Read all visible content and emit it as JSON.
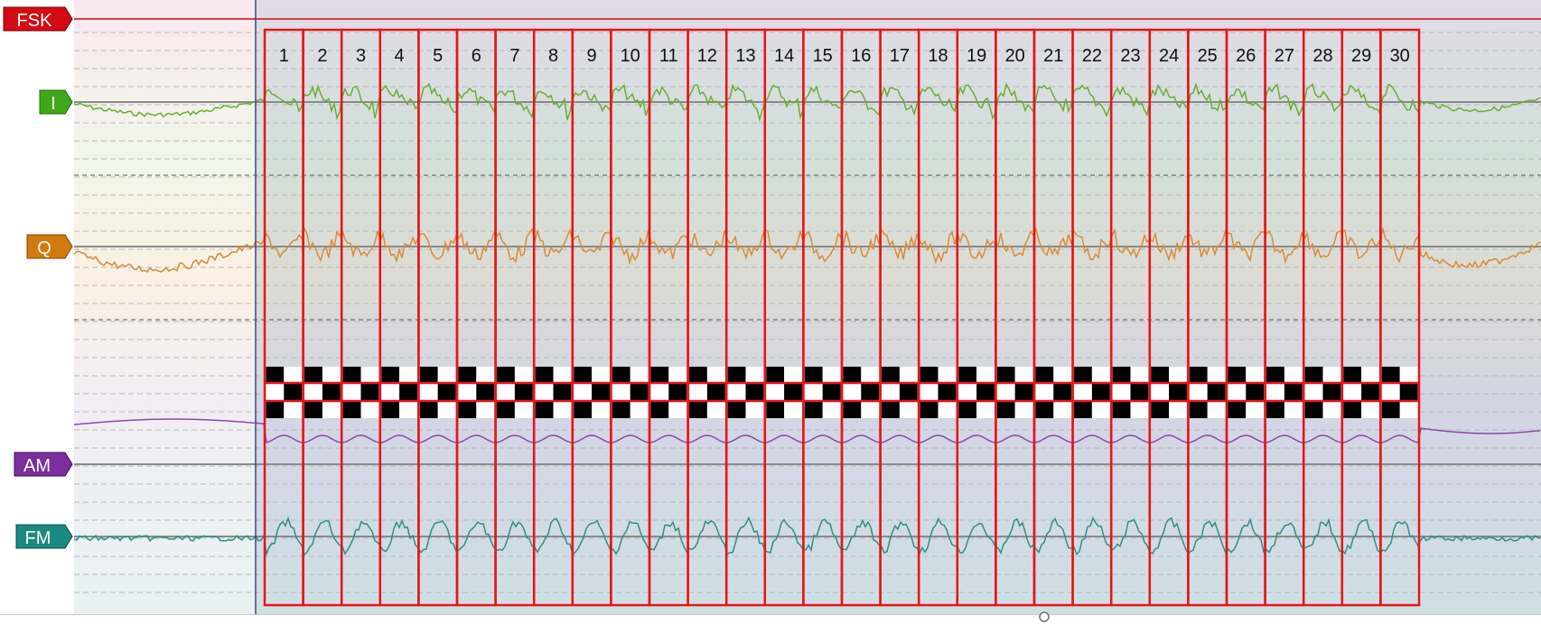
{
  "channels": [
    {
      "id": "fsk",
      "label": "FSK",
      "color": "#d20a14"
    },
    {
      "id": "i",
      "label": "I",
      "color": "#3ea81a"
    },
    {
      "id": "q",
      "label": "Q",
      "color": "#d17a12"
    },
    {
      "id": "am",
      "label": "AM",
      "color": "#7a2f9c"
    },
    {
      "id": "fm",
      "label": "FM",
      "color": "#1a8a80"
    }
  ],
  "segments": {
    "count": 30,
    "labels": [
      "1",
      "2",
      "3",
      "4",
      "5",
      "6",
      "7",
      "8",
      "9",
      "10",
      "11",
      "12",
      "13",
      "14",
      "15",
      "16",
      "17",
      "18",
      "19",
      "20",
      "21",
      "22",
      "23",
      "24",
      "25",
      "26",
      "27",
      "28",
      "29",
      "30"
    ],
    "outline_color": "#e8141a"
  },
  "trace_colors": {
    "i": "#6aad36",
    "q": "#d98a3a",
    "am": "#8a4aa8",
    "fm": "#2e8f88"
  }
}
